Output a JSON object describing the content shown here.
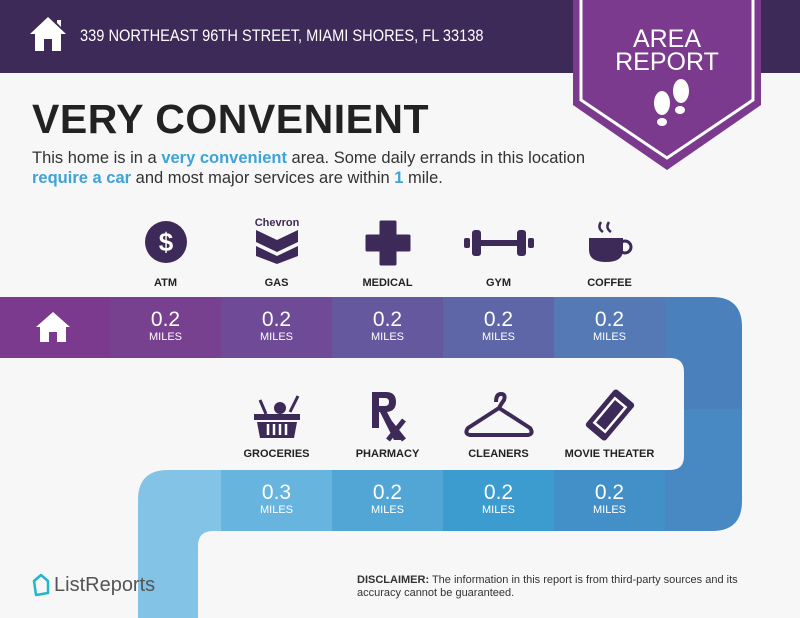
{
  "header": {
    "address": "339 NORTHEAST 96TH STREET, MIAMI SHORES, FL 33138",
    "icon": "home-icon"
  },
  "badge": {
    "line1": "AREA",
    "line2": "REPORT",
    "icon": "footprints-icon",
    "color": "#7b3a8e"
  },
  "title": "VERY CONVENIENT",
  "description": {
    "p1": "This home is in a ",
    "h1": "very convenient",
    "p2": " area. Some daily errands in this location ",
    "h2": "require a car",
    "p3": " and most major services are within ",
    "h3": "1",
    "p4": " mile."
  },
  "row1": [
    {
      "label": "ATM",
      "value": "0.2",
      "unit": "MILES",
      "icon": "dollar-icon",
      "color": "#784190"
    },
    {
      "label": "GAS",
      "value": "0.2",
      "unit": "MILES",
      "icon": "chevron-logo-icon",
      "brand": "Chevron",
      "color": "#6f4a96"
    },
    {
      "label": "MEDICAL",
      "value": "0.2",
      "unit": "MILES",
      "icon": "medical-cross-icon",
      "color": "#66589f"
    },
    {
      "label": "GYM",
      "value": "0.2",
      "unit": "MILES",
      "icon": "dumbbell-icon",
      "color": "#5e66a8"
    },
    {
      "label": "COFFEE",
      "value": "0.2",
      "unit": "MILES",
      "icon": "coffee-cup-icon",
      "color": "#5479b5"
    }
  ],
  "row2": [
    {
      "label": "GROCERIES",
      "value": "0.3",
      "unit": "MILES",
      "icon": "grocery-basket-icon",
      "color": "#67b4df"
    },
    {
      "label": "PHARMACY",
      "value": "0.2",
      "unit": "MILES",
      "icon": "rx-icon",
      "color": "#51a6d6"
    },
    {
      "label": "CLEANERS",
      "value": "0.2",
      "unit": "MILES",
      "icon": "hanger-icon",
      "color": "#3d9ccf"
    },
    {
      "label": "MOVIE THEATER",
      "value": "0.2",
      "unit": "MILES",
      "icon": "ticket-icon",
      "color": "#4290c7"
    }
  ],
  "footer": {
    "logo": "ListReports",
    "disclaimer_label": "DISCLAIMER:",
    "disclaimer": " The information in this report is from third-party sources and its accuracy cannot be guaranteed."
  }
}
